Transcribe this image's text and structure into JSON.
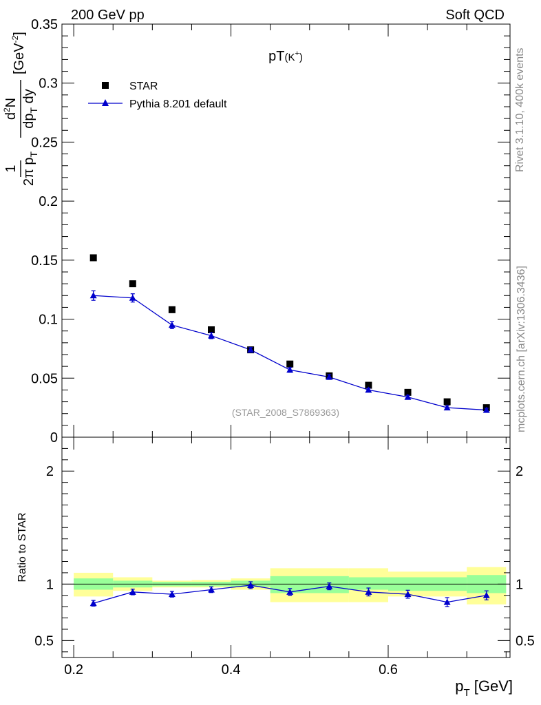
{
  "header": {
    "left": "200 GeV pp",
    "right": "Soft QCD"
  },
  "side_labels": {
    "rivet": "Rivet 3.1.10,  400k events",
    "mcplots": "mcplots.cern.ch [arXiv:1306.3436]"
  },
  "chart_data": [
    {
      "type": "scatter",
      "title": "pT(K⁺)",
      "ylabel": "1/(2π pT) d²N/(dpT dy) [GeV⁻²]",
      "xlabel": "pT [GeV]",
      "watermark": "(STAR_2008_S7869363)",
      "xlim": [
        0.185,
        0.755
      ],
      "ylim": [
        0,
        0.35
      ],
      "legend_position": "top-left",
      "yticks": [
        "0",
        "0.05",
        "0.1",
        "0.15",
        "0.2",
        "0.25",
        "0.3",
        "0.35"
      ],
      "series": [
        {
          "name": "STAR",
          "marker": "square",
          "color": "#000000",
          "x": [
            0.225,
            0.275,
            0.325,
            0.375,
            0.425,
            0.475,
            0.525,
            0.575,
            0.625,
            0.675,
            0.725
          ],
          "values": [
            0.152,
            0.13,
            0.108,
            0.091,
            0.074,
            0.062,
            0.052,
            0.044,
            0.038,
            0.03,
            0.025
          ]
        },
        {
          "name": "Pythia 8.201 default",
          "marker": "triangle",
          "color": "#0000cc",
          "x": [
            0.225,
            0.275,
            0.325,
            0.375,
            0.425,
            0.475,
            0.525,
            0.575,
            0.625,
            0.675,
            0.725
          ],
          "values": [
            0.12,
            0.118,
            0.095,
            0.086,
            0.074,
            0.057,
            0.051,
            0.04,
            0.034,
            0.025,
            0.023
          ],
          "errors": [
            0.004,
            0.0035,
            0.003,
            0.0025,
            0.002,
            0.002,
            0.002,
            0.0015,
            0.0015,
            0.0015,
            0.0015
          ]
        }
      ]
    },
    {
      "type": "scatter",
      "ylabel": "Ratio to STAR",
      "xlabel": "pT [GeV]",
      "xlim": [
        0.185,
        0.755
      ],
      "ylim": [
        0.35,
        2.3
      ],
      "yticks": [
        "0.5",
        "1",
        "2"
      ],
      "xticks": [
        "0.2",
        "0.4",
        "0.6"
      ],
      "bands": [
        {
          "x0": 0.2,
          "x1": 0.25,
          "green": [
            0.95,
            1.05
          ],
          "yellow": [
            0.89,
            1.1
          ]
        },
        {
          "x0": 0.25,
          "x1": 0.3,
          "green": [
            0.97,
            1.03
          ],
          "yellow": [
            0.94,
            1.06
          ]
        },
        {
          "x0": 0.3,
          "x1": 0.35,
          "green": [
            0.98,
            1.02
          ],
          "yellow": [
            0.97,
            1.03
          ]
        },
        {
          "x0": 0.35,
          "x1": 0.4,
          "green": [
            0.98,
            1.02
          ],
          "yellow": [
            0.97,
            1.035
          ]
        },
        {
          "x0": 0.4,
          "x1": 0.45,
          "green": [
            0.975,
            1.03
          ],
          "yellow": [
            0.95,
            1.05
          ]
        },
        {
          "x0": 0.45,
          "x1": 0.55,
          "green": [
            0.92,
            1.07
          ],
          "yellow": [
            0.84,
            1.14
          ]
        },
        {
          "x0": 0.55,
          "x1": 0.6,
          "green": [
            0.95,
            1.06
          ],
          "yellow": [
            0.84,
            1.14
          ]
        },
        {
          "x0": 0.6,
          "x1": 0.7,
          "green": [
            0.94,
            1.06
          ],
          "yellow": [
            0.89,
            1.11
          ]
        },
        {
          "x0": 0.7,
          "x1": 0.75,
          "green": [
            0.92,
            1.08
          ],
          "yellow": [
            0.82,
            1.15
          ]
        }
      ],
      "series": [
        {
          "name": "Pythia 8.201 default",
          "marker": "triangle",
          "color": "#0000cc",
          "x": [
            0.225,
            0.275,
            0.325,
            0.375,
            0.425,
            0.475,
            0.525,
            0.575,
            0.625,
            0.675,
            0.725
          ],
          "values": [
            0.83,
            0.93,
            0.91,
            0.95,
            0.99,
            0.93,
            0.98,
            0.93,
            0.91,
            0.84,
            0.9
          ],
          "errors": [
            0.025,
            0.025,
            0.025,
            0.025,
            0.03,
            0.03,
            0.03,
            0.035,
            0.035,
            0.04,
            0.04
          ]
        }
      ]
    }
  ]
}
